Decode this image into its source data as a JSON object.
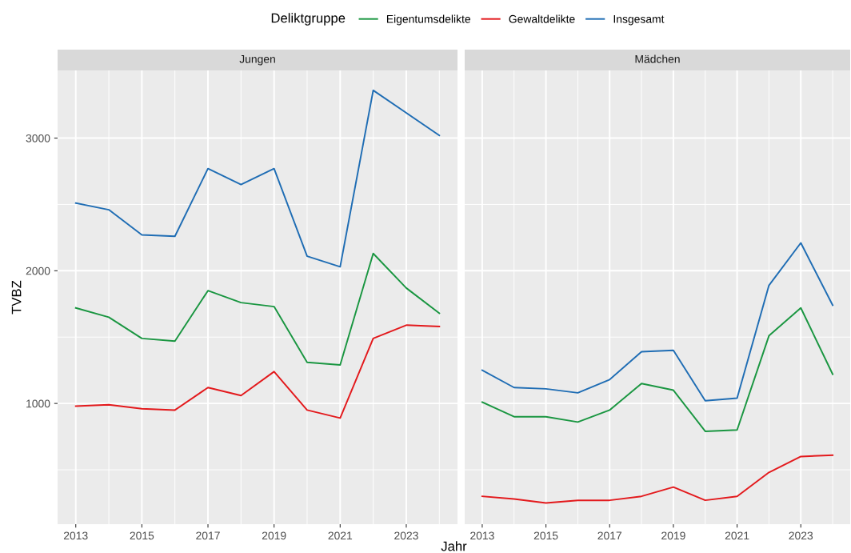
{
  "chart_data": [
    {
      "type": "line",
      "title": "Jungen",
      "xlabel": "Jahr",
      "ylabel": "TVBZ",
      "legend_title": "Deliktgruppe",
      "legend": "top",
      "x": [
        2013,
        2014,
        2015,
        2016,
        2017,
        2018,
        2019,
        2020,
        2021,
        2022,
        2023,
        2024
      ],
      "series": [
        {
          "name": "Eigentumsdelikte",
          "color": "#1a9641",
          "values": [
            1720,
            1650,
            1490,
            1470,
            1850,
            1760,
            1730,
            1310,
            1290,
            2130,
            1870,
            1680
          ]
        },
        {
          "name": "Gewaltdelikte",
          "color": "#e3191c",
          "values": [
            980,
            990,
            960,
            950,
            1120,
            1060,
            1240,
            950,
            890,
            1490,
            1590,
            1580
          ]
        },
        {
          "name": "Insgesamt",
          "color": "#1f6db4",
          "values": [
            2510,
            2460,
            2270,
            2260,
            2770,
            2650,
            2770,
            2110,
            2030,
            3360,
            3190,
            3020
          ]
        }
      ],
      "xlim": [
        2012.45,
        2024.55
      ],
      "xticks": [
        2013,
        2015,
        2017,
        2019,
        2021,
        2023
      ],
      "ylim": [
        90,
        3510
      ],
      "yticks": [
        1000,
        2000,
        3000
      ],
      "grid": true
    },
    {
      "type": "line",
      "title": "Mädchen",
      "tick_labels": "x",
      "x": [
        2013,
        2014,
        2015,
        2016,
        2017,
        2018,
        2019,
        2020,
        2021,
        2022,
        2023,
        2024
      ],
      "series": [
        {
          "color": "#1a9641",
          "values": [
            1010,
            900,
            900,
            860,
            950,
            1150,
            1100,
            790,
            800,
            1510,
            1720,
            1220
          ]
        },
        {
          "color": "#e3191c",
          "values": [
            300,
            280,
            250,
            270,
            270,
            300,
            370,
            270,
            300,
            480,
            600,
            610
          ]
        },
        {
          "color": "#1f6db4",
          "values": [
            1250,
            1120,
            1110,
            1080,
            1180,
            1390,
            1400,
            1020,
            1040,
            1890,
            2210,
            1740
          ]
        }
      ],
      "xlim": [
        2012.45,
        2024.55
      ],
      "xticks": [
        2013,
        2015,
        2017,
        2019,
        2021,
        2023
      ],
      "ylim": [
        90,
        3510
      ],
      "yticks": [
        1000,
        2000,
        3000
      ],
      "grid": true
    }
  ]
}
